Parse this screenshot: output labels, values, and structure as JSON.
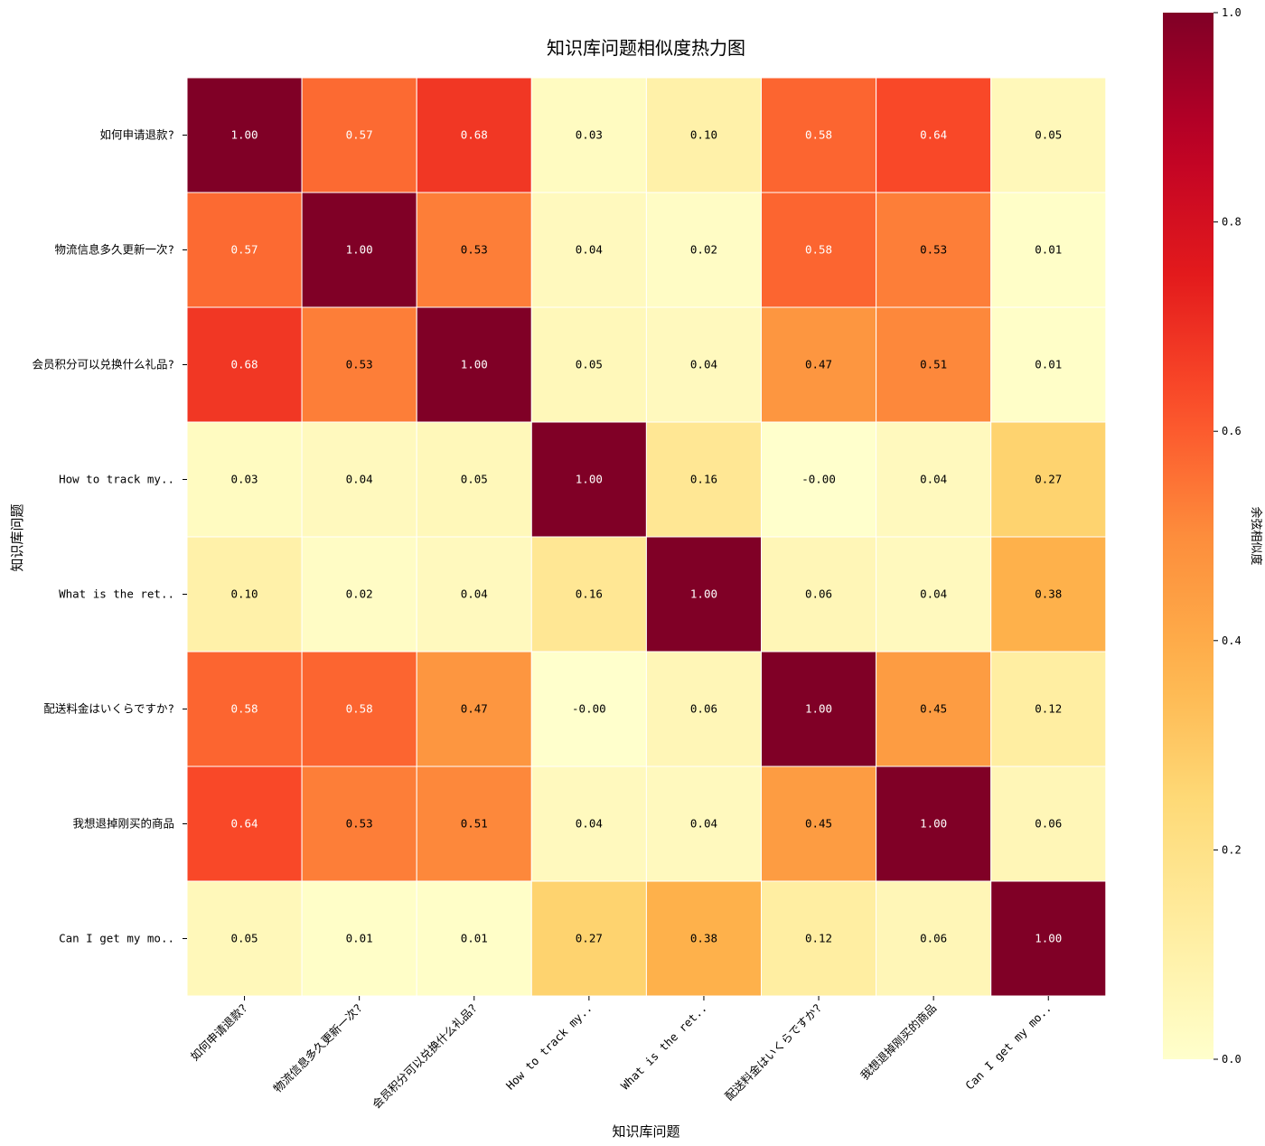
{
  "chart_data": {
    "type": "heatmap",
    "title": "知识库问题相似度热力图",
    "xlabel": "知识库问题",
    "ylabel": "知识库问题",
    "colorbar_label": "余弦相似度",
    "colormap": "YlOrRd",
    "vmin": 0.0,
    "vmax": 1.0,
    "colorbar_ticks": [
      "0.0",
      "0.2",
      "0.4",
      "0.6",
      "0.8",
      "1.0"
    ],
    "colorbar_tick_values": [
      0.0,
      0.2,
      0.4,
      0.6,
      0.8,
      1.0
    ],
    "labels": [
      "如何申请退款?",
      "物流信息多久更新一次?",
      "会员积分可以兑换什么礼品?",
      "How to track my..",
      "What is the ret..",
      "配送料金はいくらですか?",
      "我想退掉刚买的商品",
      "Can I get my mo.."
    ],
    "values": [
      [
        1.0,
        0.57,
        0.68,
        0.03,
        0.1,
        0.58,
        0.64,
        0.05
      ],
      [
        0.57,
        1.0,
        0.53,
        0.04,
        0.02,
        0.58,
        0.53,
        0.01
      ],
      [
        0.68,
        0.53,
        1.0,
        0.05,
        0.04,
        0.47,
        0.51,
        0.01
      ],
      [
        0.03,
        0.04,
        0.05,
        1.0,
        0.16,
        -0.0,
        0.04,
        0.27
      ],
      [
        0.1,
        0.02,
        0.04,
        0.16,
        1.0,
        0.06,
        0.04,
        0.38
      ],
      [
        0.58,
        0.58,
        0.47,
        -0.0,
        0.06,
        1.0,
        0.45,
        0.12
      ],
      [
        0.64,
        0.53,
        0.51,
        0.04,
        0.04,
        0.45,
        1.0,
        0.06
      ],
      [
        0.05,
        0.01,
        0.01,
        0.27,
        0.38,
        0.12,
        0.06,
        1.0
      ]
    ],
    "value_format": "0.00"
  }
}
